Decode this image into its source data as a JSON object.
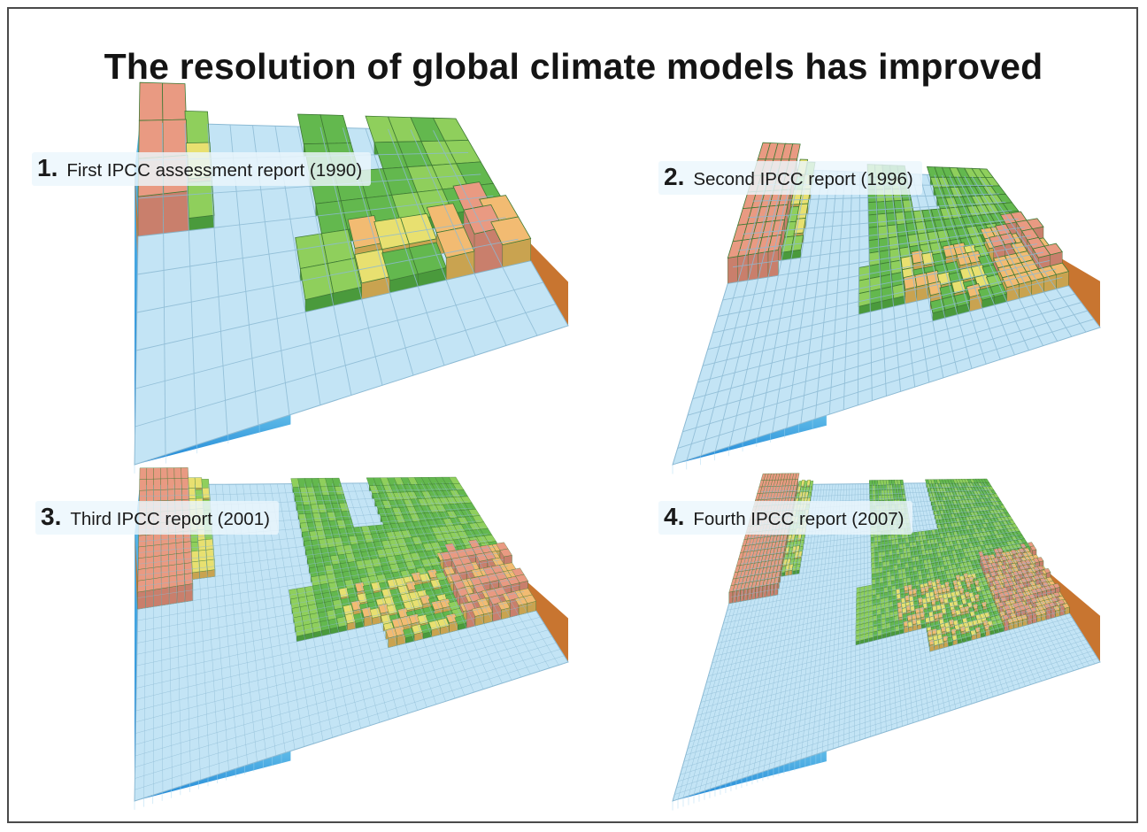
{
  "title": "The resolution of global climate models has improved",
  "colors": {
    "ocean_top": "#c3e4f5",
    "ocean_grid": "#8cbad4",
    "ocean_side_top": "#5fbbe8",
    "ocean_side_bottom": "#1e86d6",
    "earth_side": "#c87530",
    "land_low": "#63b84e",
    "land_mid": "#8fcf5c",
    "land_high_yellow": "#e8e070",
    "land_higher_orange": "#f2bb72",
    "land_mountain": "#e99a82"
  },
  "panels": [
    {
      "number": "1.",
      "label": "First IPCC assessment report (1990)",
      "grid_cols": 14,
      "grid_rows": 9
    },
    {
      "number": "2.",
      "label": "Second IPCC report (1996)",
      "grid_cols": 30,
      "grid_rows": 18
    },
    {
      "number": "3.",
      "label": "Third IPCC report (2001)",
      "grid_cols": 46,
      "grid_rows": 28
    },
    {
      "number": "4.",
      "label": "Fourth IPCC report (2007)",
      "grid_cols": 80,
      "grid_rows": 48
    }
  ]
}
